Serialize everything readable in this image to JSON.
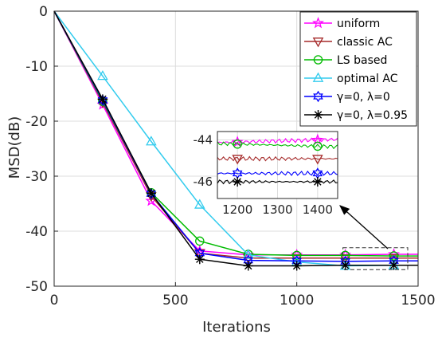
{
  "chart_data": {
    "type": "line",
    "xlabel": "Iterations",
    "ylabel": "MSD(dB)",
    "xlim": [
      0,
      1500
    ],
    "ylim": [
      -50,
      0
    ],
    "xticks": [
      "0",
      "500",
      "1000",
      "1500"
    ],
    "yticks": [
      "0",
      "-10",
      "-20",
      "-30",
      "-40",
      "-50"
    ],
    "grid": true,
    "legend_position": "top-right",
    "series": [
      {
        "name": "uniform",
        "color": "#ff00ff",
        "marker": "star",
        "x": [
          0,
          200,
          400,
          600,
          800,
          1000,
          1200,
          1400,
          1500
        ],
        "y": [
          0,
          -17.0,
          -34.5,
          -43.6,
          -44.3,
          -44.3,
          -44.3,
          -44.2,
          -44.2
        ]
      },
      {
        "name": "classic AC",
        "color": "#a52a2a",
        "marker": "triangle-down",
        "x": [
          0,
          200,
          400,
          600,
          800,
          1000,
          1200,
          1400,
          1500
        ],
        "y": [
          0,
          -16.6,
          -33.6,
          -44.0,
          -44.9,
          -44.9,
          -44.9,
          -44.9,
          -44.9
        ]
      },
      {
        "name": "LS based",
        "color": "#00bb00",
        "marker": "circle",
        "x": [
          0,
          200,
          400,
          600,
          800,
          1000,
          1200,
          1400,
          1500
        ],
        "y": [
          0,
          -16.4,
          -33.0,
          -41.8,
          -44.2,
          -44.4,
          -44.4,
          -44.5,
          -44.5
        ]
      },
      {
        "name": "optimal AC",
        "color": "#33ccee",
        "marker": "triangle-up",
        "x": [
          0,
          200,
          400,
          600,
          800,
          1000,
          1200,
          1400,
          1500
        ],
        "y": [
          0,
          -11.8,
          -23.7,
          -35.2,
          -44.3,
          -45.6,
          -46.3,
          -46.2,
          -46.2
        ]
      },
      {
        "name": "γ=0, λ=0",
        "color": "#0000ff",
        "marker": "hexagram",
        "x": [
          0,
          200,
          400,
          600,
          800,
          1000,
          1200,
          1400,
          1500
        ],
        "y": [
          0,
          -16.2,
          -33.2,
          -44.0,
          -45.3,
          -45.4,
          -45.5,
          -45.4,
          -45.4
        ]
      },
      {
        "name": "γ=0, λ=0.95",
        "color": "#000000",
        "marker": "asterisk",
        "x": [
          0,
          200,
          400,
          600,
          800,
          1000,
          1200,
          1400,
          1500
        ],
        "y": [
          0,
          -16.0,
          -33.1,
          -45.1,
          -46.3,
          -46.3,
          -46.2,
          -46.2,
          -46.2
        ]
      }
    ],
    "inset": {
      "xlim": [
        1150,
        1450
      ],
      "ylim": [
        -46.8,
        -43.6
      ],
      "xticks": [
        "1200",
        "1300",
        "1400"
      ],
      "yticks": [
        "-44",
        "-46"
      ],
      "zoom_region": {
        "x": [
          1200,
          1500
        ],
        "y": [
          -47,
          -43
        ]
      },
      "series": [
        {
          "color": "#ff00ff",
          "marker": "star",
          "x": [
            1200,
            1400
          ],
          "y": [
            -44.1,
            -44.0
          ]
        },
        {
          "color": "#00bb00",
          "marker": "circle",
          "x": [
            1200,
            1400
          ],
          "y": [
            -44.2,
            -44.3
          ]
        },
        {
          "color": "#a52a2a",
          "marker": "triangle-down",
          "x": [
            1200,
            1400
          ],
          "y": [
            -44.9,
            -44.9
          ]
        },
        {
          "color": "#0000ff",
          "marker": "hexagram",
          "x": [
            1200,
            1400
          ],
          "y": [
            -45.6,
            -45.6
          ]
        },
        {
          "color": "#000000",
          "marker": "asterisk",
          "x": [
            1200,
            1400
          ],
          "y": [
            -46.0,
            -46.0
          ]
        }
      ]
    }
  }
}
